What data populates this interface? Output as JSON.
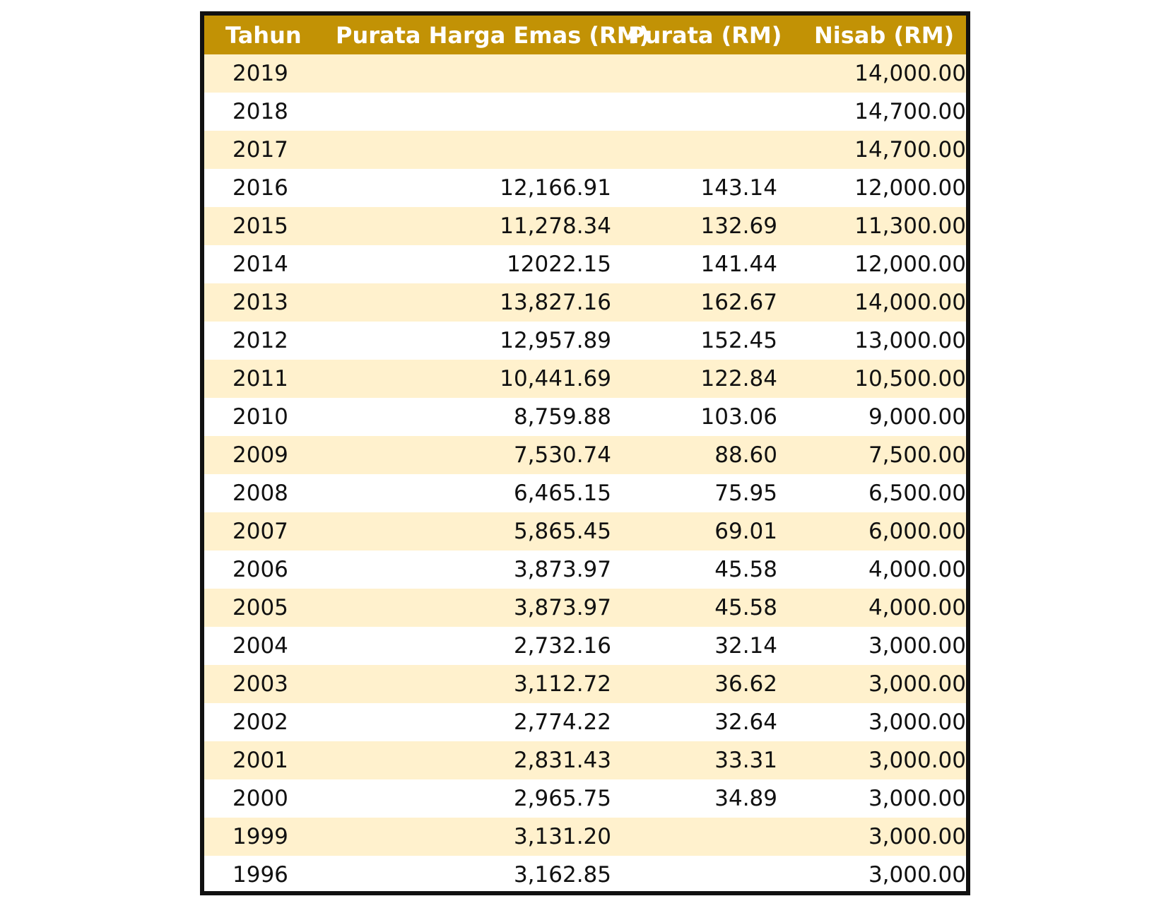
{
  "table": {
    "headers": {
      "year": "Tahun",
      "price": "Purata Harga Emas (RM)",
      "avg": "Purata (RM)",
      "nisab": "Nisab (RM)"
    },
    "rows": [
      {
        "year": "2019",
        "price": "",
        "avg": "",
        "nisab": "14,000.00"
      },
      {
        "year": "2018",
        "price": "",
        "avg": "",
        "nisab": "14,700.00"
      },
      {
        "year": "2017",
        "price": "",
        "avg": "",
        "nisab": "14,700.00"
      },
      {
        "year": "2016",
        "price": "12,166.91",
        "avg": "143.14",
        "nisab": "12,000.00"
      },
      {
        "year": "2015",
        "price": "11,278.34",
        "avg": "132.69",
        "nisab": "11,300.00"
      },
      {
        "year": "2014",
        "price": "12022.15",
        "avg": "141.44",
        "nisab": "12,000.00"
      },
      {
        "year": "2013",
        "price": "13,827.16",
        "avg": "162.67",
        "nisab": "14,000.00"
      },
      {
        "year": "2012",
        "price": "12,957.89",
        "avg": "152.45",
        "nisab": "13,000.00"
      },
      {
        "year": "2011",
        "price": "10,441.69",
        "avg": "122.84",
        "nisab": "10,500.00"
      },
      {
        "year": "2010",
        "price": "8,759.88",
        "avg": "103.06",
        "nisab": "9,000.00"
      },
      {
        "year": "2009",
        "price": "7,530.74",
        "avg": "88.60",
        "nisab": "7,500.00"
      },
      {
        "year": "2008",
        "price": "6,465.15",
        "avg": "75.95",
        "nisab": "6,500.00"
      },
      {
        "year": "2007",
        "price": "5,865.45",
        "avg": "69.01",
        "nisab": "6,000.00"
      },
      {
        "year": "2006",
        "price": "3,873.97",
        "avg": "45.58",
        "nisab": "4,000.00"
      },
      {
        "year": "2005",
        "price": "3,873.97",
        "avg": "45.58",
        "nisab": "4,000.00"
      },
      {
        "year": "2004",
        "price": "2,732.16",
        "avg": "32.14",
        "nisab": "3,000.00"
      },
      {
        "year": "2003",
        "price": "3,112.72",
        "avg": "36.62",
        "nisab": "3,000.00"
      },
      {
        "year": "2002",
        "price": "2,774.22",
        "avg": "32.64",
        "nisab": "3,000.00"
      },
      {
        "year": "2001",
        "price": "2,831.43",
        "avg": "33.31",
        "nisab": "3,000.00"
      },
      {
        "year": "2000",
        "price": "2,965.75",
        "avg": "34.89",
        "nisab": "3,000.00"
      },
      {
        "year": "1999",
        "price": "3,131.20",
        "avg": "",
        "nisab": "3,000.00"
      },
      {
        "year": "1996",
        "price": "3,162.85",
        "avg": "",
        "nisab": "3,000.00"
      }
    ]
  },
  "colors": {
    "header_bg": "#c29205",
    "header_text": "#ffffff",
    "stripe": "#fff1cd",
    "border": "#111111"
  }
}
